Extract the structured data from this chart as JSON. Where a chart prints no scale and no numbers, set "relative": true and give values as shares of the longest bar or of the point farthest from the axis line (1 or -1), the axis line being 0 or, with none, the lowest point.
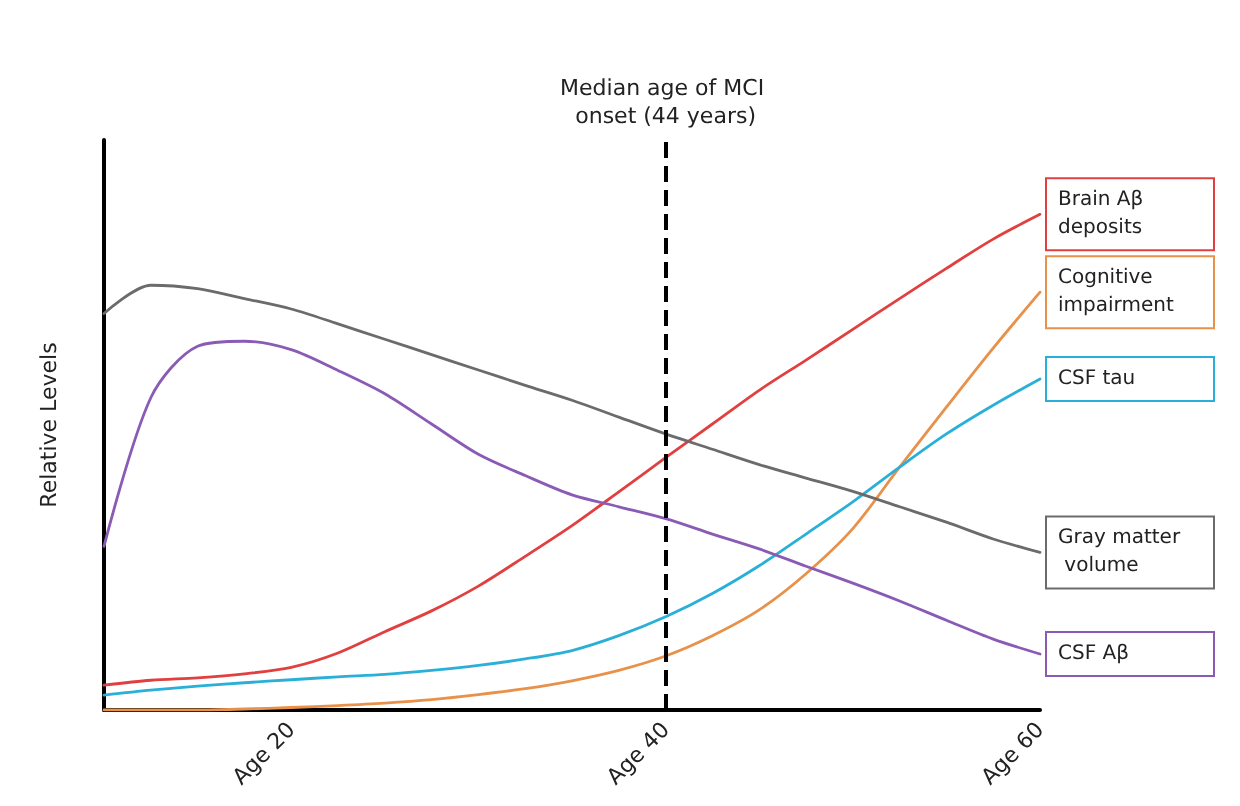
{
  "chart_data": {
    "type": "line",
    "ylabel": "Relative Levels",
    "relative": true,
    "categories": [
      null,
      null,
      null,
      null,
      "Age 20",
      null,
      null,
      null,
      null,
      null,
      null,
      null,
      "Age 40",
      null,
      null,
      null,
      null,
      null,
      null,
      null,
      "Age 60"
    ],
    "series": [
      {
        "name": "Brain Aβ deposits",
        "color": "#e0403f",
        "values": [
          0.05,
          0.06,
          0.065,
          0.073,
          0.086,
          0.115,
          0.158,
          0.2,
          0.25,
          0.31,
          0.372,
          0.44,
          0.509,
          0.577,
          0.645,
          0.706,
          0.768,
          0.83,
          0.891,
          0.95,
          1
        ]
      },
      {
        "name": "Cognitive impairment",
        "color": "#e8914a",
        "values": [
          0,
          0,
          0,
          0.002,
          0.005,
          0.009,
          0.014,
          0.021,
          0.031,
          0.043,
          0.059,
          0.08,
          0.109,
          0.15,
          0.202,
          0.275,
          0.366,
          0.49,
          0.611,
          0.73,
          0.843
        ]
      },
      {
        "name": "CSF tau",
        "color": "#2ab0d8",
        "values": [
          0.03,
          0.04,
          0.048,
          0.055,
          0.061,
          0.067,
          0.072,
          0.08,
          0.09,
          0.103,
          0.12,
          0.15,
          0.188,
          0.235,
          0.291,
          0.355,
          0.42,
          0.49,
          0.557,
          0.615,
          0.668
        ]
      },
      {
        "name": "Gray matter volume",
        "color": "#6b6b6b",
        "values": [
          0.8,
          0.857,
          0.85,
          0.83,
          0.809,
          0.779,
          0.748,
          0.717,
          0.686,
          0.655,
          0.625,
          0.591,
          0.557,
          0.526,
          0.495,
          0.468,
          0.441,
          0.41,
          0.379,
          0.345,
          0.318
        ]
      },
      {
        "name": "CSF Aβ",
        "color": "#8a5bb5",
        "values": [
          0.33,
          0.63,
          0.734,
          0.744,
          0.727,
          0.685,
          0.638,
          0.577,
          0.516,
          0.473,
          0.434,
          0.41,
          0.386,
          0.355,
          0.325,
          0.29,
          0.256,
          0.22,
          0.181,
          0.143,
          0.113
        ]
      }
    ],
    "ref_lines": [
      {
        "axis": "x",
        "value": "Age 40",
        "label": "Median age of MCI onset (44 years)",
        "color": "#000000",
        "line_style": "dashed"
      }
    ],
    "grid": false,
    "legend": false,
    "marker": "none",
    "line_style": "solid"
  }
}
